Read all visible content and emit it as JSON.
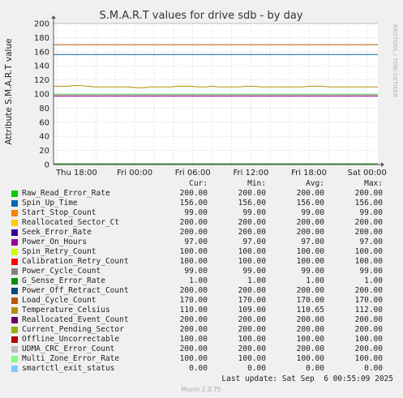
{
  "chart_data": {
    "type": "line",
    "title": "S.M.A.R.T values for drive sdb - by day",
    "ylabel": "Attribute S.M.A.R.T value",
    "ylim": [
      0,
      200
    ],
    "y_ticks": [
      "0",
      "20",
      "40",
      "60",
      "80",
      "100",
      "120",
      "140",
      "160",
      "180",
      "200"
    ],
    "x_ticks": [
      "Thu 18:00",
      "Fri 00:00",
      "Fri 06:00",
      "Fri 12:00",
      "Fri 18:00",
      "Sat 00:00"
    ],
    "grid": true,
    "series": [
      {
        "name": "Raw_Read_Error_Rate",
        "color": "#00cc00",
        "cur": "200.00",
        "min": "200.00",
        "avg": "200.00",
        "max": "200.00"
      },
      {
        "name": "Spin_Up_Time",
        "color": "#0066b3",
        "cur": "156.00",
        "min": "156.00",
        "avg": "156.00",
        "max": "156.00"
      },
      {
        "name": "Start_Stop_Count",
        "color": "#ff8000",
        "cur": "99.00",
        "min": "99.00",
        "avg": "99.00",
        "max": "99.00"
      },
      {
        "name": "Reallocated_Sector_Ct",
        "color": "#ffcc00",
        "cur": "200.00",
        "min": "200.00",
        "avg": "200.00",
        "max": "200.00"
      },
      {
        "name": "Seek_Error_Rate",
        "color": "#330099",
        "cur": "200.00",
        "min": "200.00",
        "avg": "200.00",
        "max": "200.00"
      },
      {
        "name": "Power_On_Hours",
        "color": "#990099",
        "cur": "97.00",
        "min": "97.00",
        "avg": "97.00",
        "max": "97.00"
      },
      {
        "name": "Spin_Retry_Count",
        "color": "#ccff00",
        "cur": "100.00",
        "min": "100.00",
        "avg": "100.00",
        "max": "100.00"
      },
      {
        "name": "Calibration_Retry_Count",
        "color": "#ff0000",
        "cur": "100.00",
        "min": "100.00",
        "avg": "100.00",
        "max": "100.00"
      },
      {
        "name": "Power_Cycle_Count",
        "color": "#808080",
        "cur": "99.00",
        "min": "99.00",
        "avg": "99.00",
        "max": "99.00"
      },
      {
        "name": "G_Sense_Error_Rate",
        "color": "#008f00",
        "cur": "1.00",
        "min": "1.00",
        "avg": "1.00",
        "max": "1.00"
      },
      {
        "name": "Power_Off_Retract_Count",
        "color": "#00487d",
        "cur": "200.00",
        "min": "200.00",
        "avg": "200.00",
        "max": "200.00"
      },
      {
        "name": "Load_Cycle_Count",
        "color": "#b35a00",
        "cur": "170.00",
        "min": "170.00",
        "avg": "170.00",
        "max": "170.00"
      },
      {
        "name": "Temperature_Celsius",
        "color": "#b38f00",
        "cur": "110.00",
        "min": "109.00",
        "avg": "110.65",
        "max": "112.00"
      },
      {
        "name": "Reallocated_Event_Count",
        "color": "#6b006b",
        "cur": "200.00",
        "min": "200.00",
        "avg": "200.00",
        "max": "200.00"
      },
      {
        "name": "Current_Pending_Sector",
        "color": "#8fb300",
        "cur": "200.00",
        "min": "200.00",
        "avg": "200.00",
        "max": "200.00"
      },
      {
        "name": "Offline_Uncorrectable",
        "color": "#b30000",
        "cur": "100.00",
        "min": "100.00",
        "avg": "100.00",
        "max": "100.00"
      },
      {
        "name": "UDMA_CRC_Error_Count",
        "color": "#bebebe",
        "cur": "200.00",
        "min": "200.00",
        "avg": "200.00",
        "max": "200.00"
      },
      {
        "name": "Multi_Zone_Error_Rate",
        "color": "#80ff80",
        "cur": "100.00",
        "min": "100.00",
        "avg": "100.00",
        "max": "100.00"
      },
      {
        "name": "smartctl_exit_status",
        "color": "#80c9ff",
        "cur": "0.00",
        "min": "0.00",
        "avg": "0.00",
        "max": "0.00"
      }
    ],
    "temperature_trace": [
      111,
      111,
      111,
      112,
      112,
      111,
      110,
      110,
      110,
      110,
      110,
      110,
      109,
      109,
      110,
      110,
      110,
      110,
      111,
      111,
      111,
      110,
      110,
      111,
      110,
      110,
      110,
      110,
      111,
      111,
      110,
      110,
      110,
      110,
      110,
      110,
      110,
      111,
      111,
      111,
      110,
      110,
      110,
      110,
      110,
      110,
      110,
      110
    ]
  },
  "legend_header": {
    "cur": "Cur:",
    "min": "Min:",
    "avg": "Avg:",
    "max": "Max:"
  },
  "side_text": "RRDTOOL / TOBI OETIKER",
  "last_update": "Last update: Sat Sep  6 00:55:09 2025",
  "footer": "Munin 2.0.75"
}
